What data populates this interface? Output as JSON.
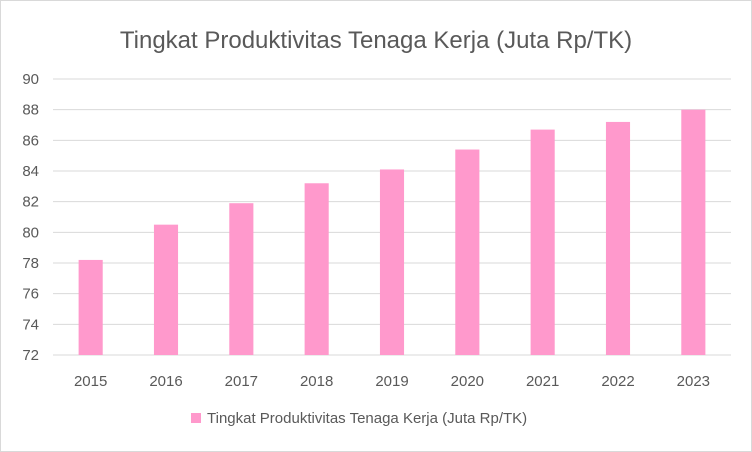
{
  "chart_data": {
    "type": "bar",
    "title": "Tingkat Produktivitas Tenaga Kerja (Juta Rp/TK)",
    "categories": [
      "2015",
      "2016",
      "2017",
      "2018",
      "2019",
      "2020",
      "2021",
      "2022",
      "2023"
    ],
    "series": [
      {
        "name": "Tingkat Produktivitas Tenaga Kerja (Juta Rp/TK)",
        "values": [
          78.2,
          80.5,
          81.9,
          83.2,
          84.1,
          85.4,
          86.7,
          87.2,
          88.0
        ],
        "color": "#ff99cc"
      }
    ],
    "ylim": [
      72,
      90
    ],
    "yticks": [
      "72",
      "74",
      "76",
      "78",
      "80",
      "82",
      "84",
      "86",
      "88",
      "90"
    ],
    "xlabel": "",
    "ylabel": "",
    "grid": true,
    "legend_position": "bottom"
  },
  "colors": {
    "bar": "#ff99cc",
    "grid": "#d9d9d9",
    "text": "#595959"
  }
}
